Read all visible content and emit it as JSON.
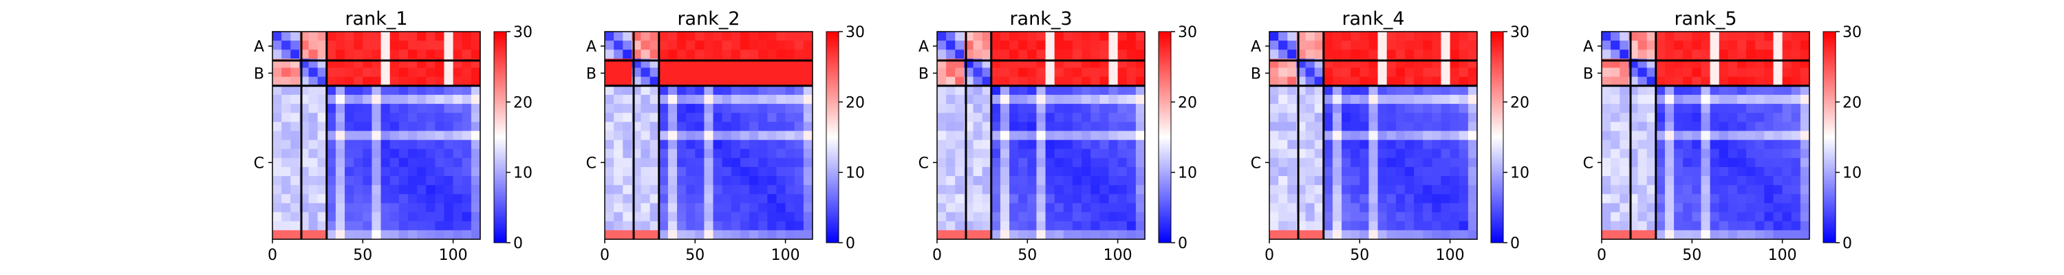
{
  "chart_data": {
    "type": "heatmap",
    "colormap": {
      "low": "#0000ff",
      "mid": "#ffffff",
      "high": "#ff0000"
    },
    "vmin": 0,
    "vmax": 30,
    "colorbar_ticks": [
      0,
      10,
      20,
      30
    ],
    "x_ticks": [
      0,
      50,
      100
    ],
    "xlim": [
      0,
      115
    ],
    "chains": [
      {
        "label": "A",
        "start": 0,
        "end": 16
      },
      {
        "label": "B",
        "start": 16,
        "end": 30
      },
      {
        "label": "C",
        "start": 30,
        "end": 115
      }
    ],
    "panels": [
      {
        "title": "rank_1",
        "variant": 1
      },
      {
        "title": "rank_2",
        "variant": 2
      },
      {
        "title": "rank_3",
        "variant": 3
      },
      {
        "title": "rank_4",
        "variant": 4
      },
      {
        "title": "rank_5",
        "variant": 5
      }
    ]
  }
}
